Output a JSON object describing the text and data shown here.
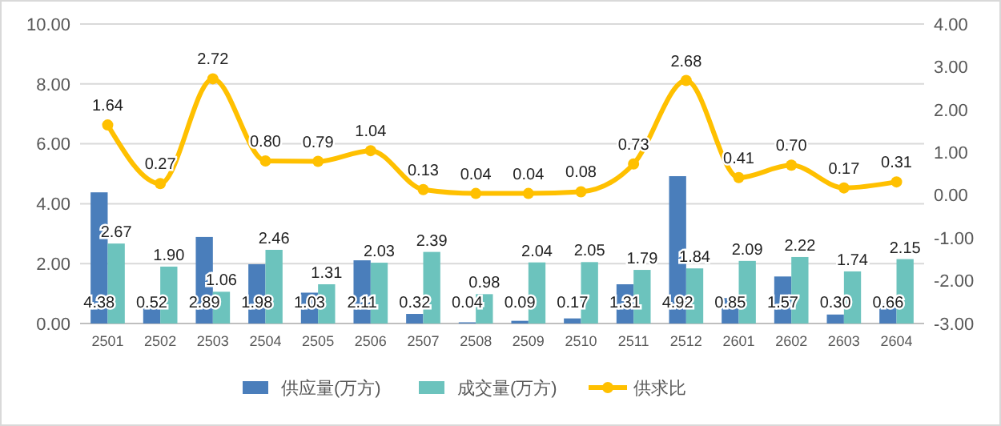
{
  "chart_data": {
    "type": "bar",
    "categories": [
      "2501",
      "2502",
      "2503",
      "2504",
      "2505",
      "2506",
      "2507",
      "2508",
      "2509",
      "2510",
      "2511",
      "2512",
      "2601",
      "2602",
      "2603",
      "2604"
    ],
    "series": [
      {
        "name": "供应量(万方)",
        "color": "#4a7ebb",
        "values": [
          4.38,
          0.52,
          2.89,
          1.98,
          1.03,
          2.11,
          0.32,
          0.04,
          0.09,
          0.17,
          1.31,
          4.92,
          0.85,
          1.57,
          0.3,
          0.66
        ],
        "value_labels": [
          "4.38",
          "0.52",
          "2.89",
          "1.98",
          "1.03",
          "2.11",
          "0.32",
          "0.04",
          "0.09",
          "0.17",
          "1.31",
          "4.92",
          "0.85",
          "1.57",
          "0.30",
          "0.66"
        ]
      },
      {
        "name": "成交量(万方)",
        "color": "#6cc3bd",
        "values": [
          2.67,
          1.9,
          1.06,
          2.46,
          1.31,
          2.03,
          2.39,
          0.98,
          2.04,
          2.05,
          1.79,
          1.84,
          2.09,
          2.22,
          1.74,
          2.15
        ],
        "value_labels": [
          "2.67",
          "1.90",
          "1.06",
          "2.46",
          "1.31",
          "2.03",
          "2.39",
          "0.98",
          "2.04",
          "2.05",
          "1.79",
          "1.84",
          "2.09",
          "2.22",
          "1.74",
          "2.15"
        ]
      },
      {
        "name": "供求比",
        "type": "line",
        "axis": "y2",
        "color": "#ffc000",
        "marker": "circle",
        "values": [
          1.64,
          0.27,
          2.72,
          0.8,
          0.79,
          1.04,
          0.13,
          0.04,
          0.04,
          0.08,
          0.73,
          2.68,
          0.41,
          0.7,
          0.17,
          0.31
        ],
        "value_labels": [
          "1.64",
          "0.27",
          "2.72",
          "0.80",
          "0.79",
          "1.04",
          "0.13",
          "0.04",
          "0.04",
          "0.08",
          "0.73",
          "2.68",
          "0.41",
          "0.70",
          "0.17",
          "0.31"
        ]
      }
    ],
    "ylim": [
      0,
      10
    ],
    "yticks": [
      {
        "value": 0,
        "label": "0.00"
      },
      {
        "value": 2,
        "label": "2.00"
      },
      {
        "value": 4,
        "label": "4.00"
      },
      {
        "value": 6,
        "label": "6.00"
      },
      {
        "value": 8,
        "label": "8.00"
      },
      {
        "value": 10,
        "label": "10.00"
      }
    ],
    "y2lim": [
      -3,
      4
    ],
    "y2ticks": [
      {
        "value": -3,
        "label": "-3.00"
      },
      {
        "value": -2,
        "label": "-2.00"
      },
      {
        "value": -1,
        "label": "-1.00"
      },
      {
        "value": 0,
        "label": "0.00"
      },
      {
        "value": 1,
        "label": "1.00"
      },
      {
        "value": 2,
        "label": "2.00"
      },
      {
        "value": 3,
        "label": "3.00"
      },
      {
        "value": 4,
        "label": "4.00"
      }
    ],
    "grid": "y",
    "legend": "bottom"
  }
}
